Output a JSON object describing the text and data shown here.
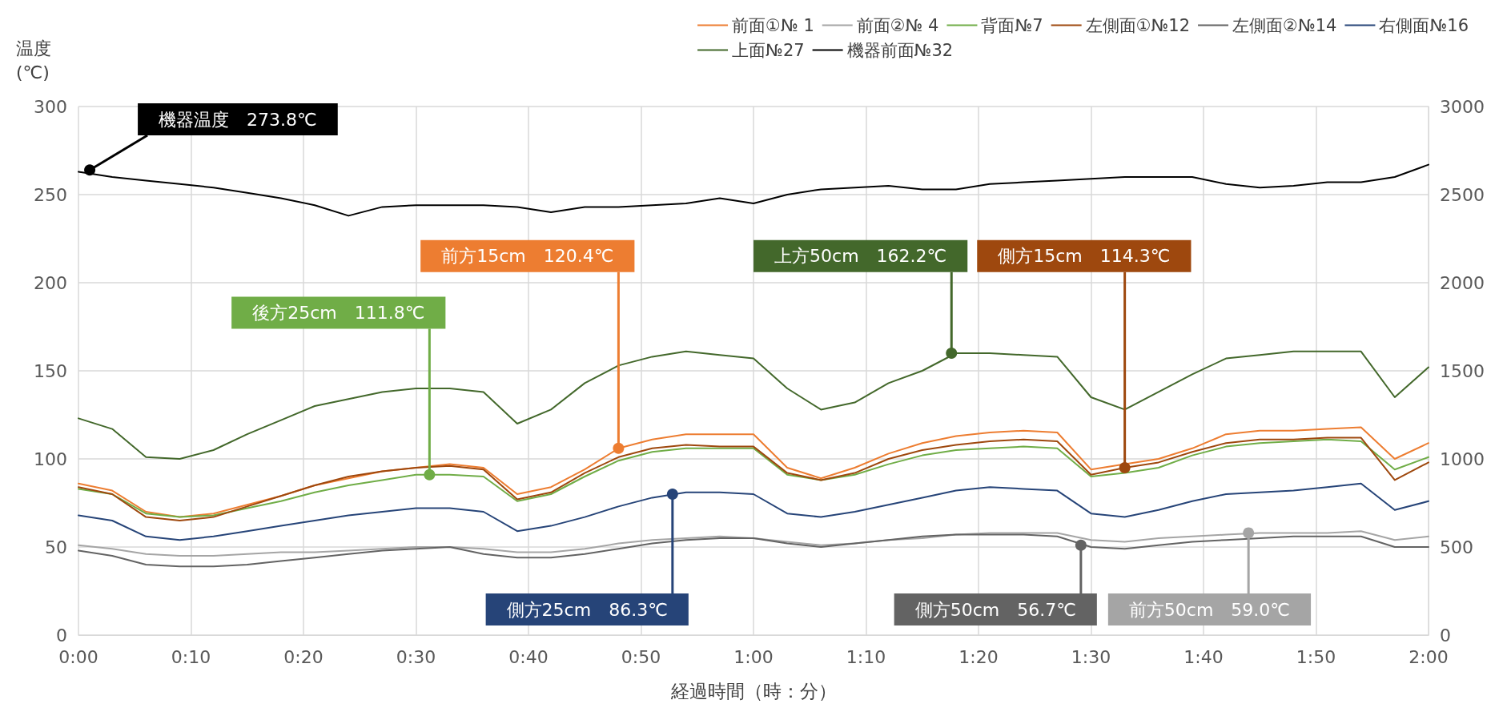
{
  "chart_data": {
    "type": "line",
    "ylabel": "温度\n(℃)",
    "xlabel": "経過時間（時：分）",
    "x": [
      0,
      0.05,
      0.1,
      0.15,
      0.2,
      0.25,
      0.3,
      0.35,
      0.4,
      0.45,
      0.5,
      0.55,
      0.6,
      0.65,
      0.7,
      0.75,
      0.8,
      0.85,
      0.9,
      0.95,
      1,
      1.05,
      1.1,
      1.15,
      1.2,
      1.25,
      1.3,
      1.35,
      1.4,
      1.45,
      1.5,
      1.55,
      1.6,
      1.65,
      1.7,
      1.75,
      1.8,
      1.85,
      1.9,
      1.95,
      2
    ],
    "series": [
      {
        "name": "前面①№ 1",
        "color": "#ed7d31",
        "values": [
          86,
          82,
          70,
          67,
          69,
          74,
          79,
          85,
          89,
          93,
          95,
          97,
          95,
          80,
          84,
          94,
          106,
          111,
          114,
          114,
          114,
          95,
          89,
          95,
          103,
          109,
          113,
          115,
          116,
          115,
          94,
          97,
          100,
          106,
          114,
          116,
          116,
          117,
          118,
          100,
          109
        ]
      },
      {
        "name": "前面②№ 4",
        "color": "#a5a5a5",
        "values": [
          51,
          49,
          46,
          45,
          45,
          46,
          47,
          47,
          48,
          49,
          50,
          50,
          49,
          47,
          47,
          49,
          52,
          54,
          55,
          56,
          55,
          53,
          51,
          52,
          54,
          55,
          57,
          58,
          58,
          58,
          54,
          53,
          55,
          56,
          57,
          58,
          58,
          58,
          59,
          54,
          56
        ]
      },
      {
        "name": "背面№7",
        "color": "#70ad47",
        "values": [
          83,
          80,
          69,
          67,
          68,
          72,
          76,
          81,
          85,
          88,
          91,
          91,
          90,
          76,
          80,
          90,
          99,
          104,
          106,
          106,
          106,
          91,
          88,
          91,
          97,
          102,
          105,
          106,
          107,
          106,
          90,
          92,
          95,
          102,
          107,
          109,
          110,
          111,
          110,
          94,
          101
        ]
      },
      {
        "name": "左側面①№12",
        "color": "#9e480e",
        "values": [
          84,
          80,
          67,
          65,
          67,
          73,
          79,
          85,
          90,
          93,
          95,
          96,
          94,
          77,
          81,
          92,
          101,
          106,
          108,
          107,
          107,
          92,
          88,
          92,
          100,
          105,
          108,
          110,
          111,
          110,
          91,
          95,
          98,
          104,
          109,
          111,
          111,
          112,
          112,
          88,
          98
        ]
      },
      {
        "name": "左側面②№14",
        "color": "#636363",
        "values": [
          48,
          45,
          40,
          39,
          39,
          40,
          42,
          44,
          46,
          48,
          49,
          50,
          46,
          44,
          44,
          46,
          49,
          52,
          54,
          55,
          55,
          52,
          50,
          52,
          54,
          56,
          57,
          57,
          57,
          56,
          50,
          49,
          51,
          53,
          54,
          55,
          56,
          56,
          56,
          50,
          50
        ]
      },
      {
        "name": "右側面№16",
        "color": "#264478",
        "values": [
          68,
          65,
          56,
          54,
          56,
          59,
          62,
          65,
          68,
          70,
          72,
          72,
          70,
          59,
          62,
          67,
          73,
          78,
          81,
          81,
          80,
          69,
          67,
          70,
          74,
          78,
          82,
          84,
          83,
          82,
          69,
          67,
          71,
          76,
          80,
          81,
          82,
          84,
          86,
          71,
          76
        ]
      },
      {
        "name": "上面№27",
        "color": "#43682b",
        "values": [
          123,
          117,
          101,
          100,
          105,
          114,
          122,
          130,
          134,
          138,
          140,
          140,
          138,
          120,
          128,
          143,
          153,
          158,
          161,
          159,
          157,
          140,
          128,
          132,
          143,
          150,
          160,
          160,
          159,
          158,
          135,
          128,
          138,
          148,
          157,
          159,
          161,
          161,
          161,
          135,
          152
        ]
      },
      {
        "name": "機器前面№32",
        "color": "#000000",
        "values": [
          263,
          260,
          258,
          256,
          254,
          251,
          248,
          244,
          238,
          243,
          244,
          244,
          244,
          243,
          240,
          243,
          243,
          244,
          245,
          248,
          245,
          250,
          253,
          254,
          255,
          253,
          253,
          256,
          257,
          258,
          259,
          260,
          260,
          260,
          256,
          254,
          255,
          257,
          257,
          260,
          267
        ]
      }
    ],
    "xlim": [
      0,
      2
    ],
    "xticks": [
      {
        "value": 0,
        "label": "0:00"
      },
      {
        "value": 0.1667,
        "label": "0:10"
      },
      {
        "value": 0.3333,
        "label": "0:20"
      },
      {
        "value": 0.5,
        "label": "0:30"
      },
      {
        "value": 0.6667,
        "label": "0:40"
      },
      {
        "value": 0.8333,
        "label": "0:50"
      },
      {
        "value": 1,
        "label": "1:00"
      },
      {
        "value": 1.1667,
        "label": "1:10"
      },
      {
        "value": 1.3333,
        "label": "1:20"
      },
      {
        "value": 1.5,
        "label": "1:30"
      },
      {
        "value": 1.6667,
        "label": "1:40"
      },
      {
        "value": 1.8333,
        "label": "1:50"
      },
      {
        "value": 2,
        "label": "2:00"
      }
    ],
    "ylim": [
      0,
      300
    ],
    "yticks": [
      0,
      50,
      100,
      150,
      200,
      250,
      300
    ],
    "y2lim": [
      0,
      3000
    ],
    "y2ticks": [
      0,
      500,
      1000,
      1500,
      2000,
      2500,
      3000
    ],
    "annotations": [
      {
        "text": "機器温度　273.8℃",
        "x": 0.0167,
        "y": 264
      },
      {
        "text": "前方15cm　120.4℃",
        "x": 0.8,
        "y": 106
      },
      {
        "text": "後方25cm　111.8℃",
        "x": 0.52,
        "y": 91
      },
      {
        "text": "上方50cm　162.2℃",
        "x": 1.2933,
        "y": 160
      },
      {
        "text": "側方15cm　114.3℃",
        "x": 1.55,
        "y": 95
      },
      {
        "text": "側方25cm　86.3℃",
        "x": 0.88,
        "y": 80
      },
      {
        "text": "側方50cm　56.7℃",
        "x": 1.485,
        "y": 51
      },
      {
        "text": "前方50cm　59.0℃",
        "x": 1.7333,
        "y": 58
      }
    ],
    "grid": true,
    "legend": "top right",
    "marker": "none",
    "line_style": "solid"
  }
}
